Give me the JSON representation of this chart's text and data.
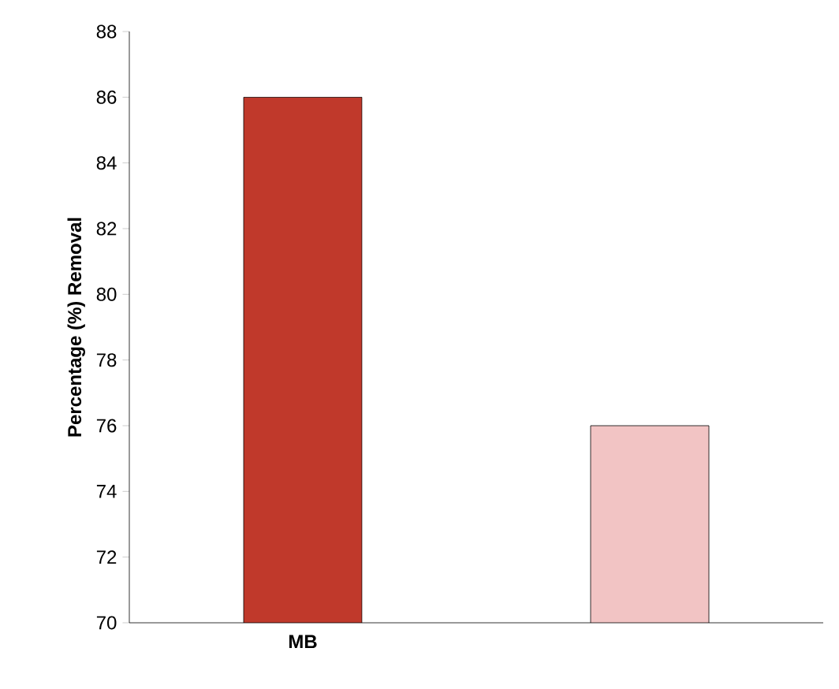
{
  "chart_data": {
    "type": "bar",
    "ylabel": "Percentage (%) Removal",
    "categories": [
      "MB",
      null
    ],
    "values": [
      86,
      76
    ],
    "colors": [
      "#c0392b",
      "#f2c4c4"
    ],
    "ylim": [
      70,
      88
    ],
    "yticks": [
      70,
      72,
      74,
      76,
      78,
      80,
      82,
      84,
      86,
      88
    ],
    "grid": false
  }
}
